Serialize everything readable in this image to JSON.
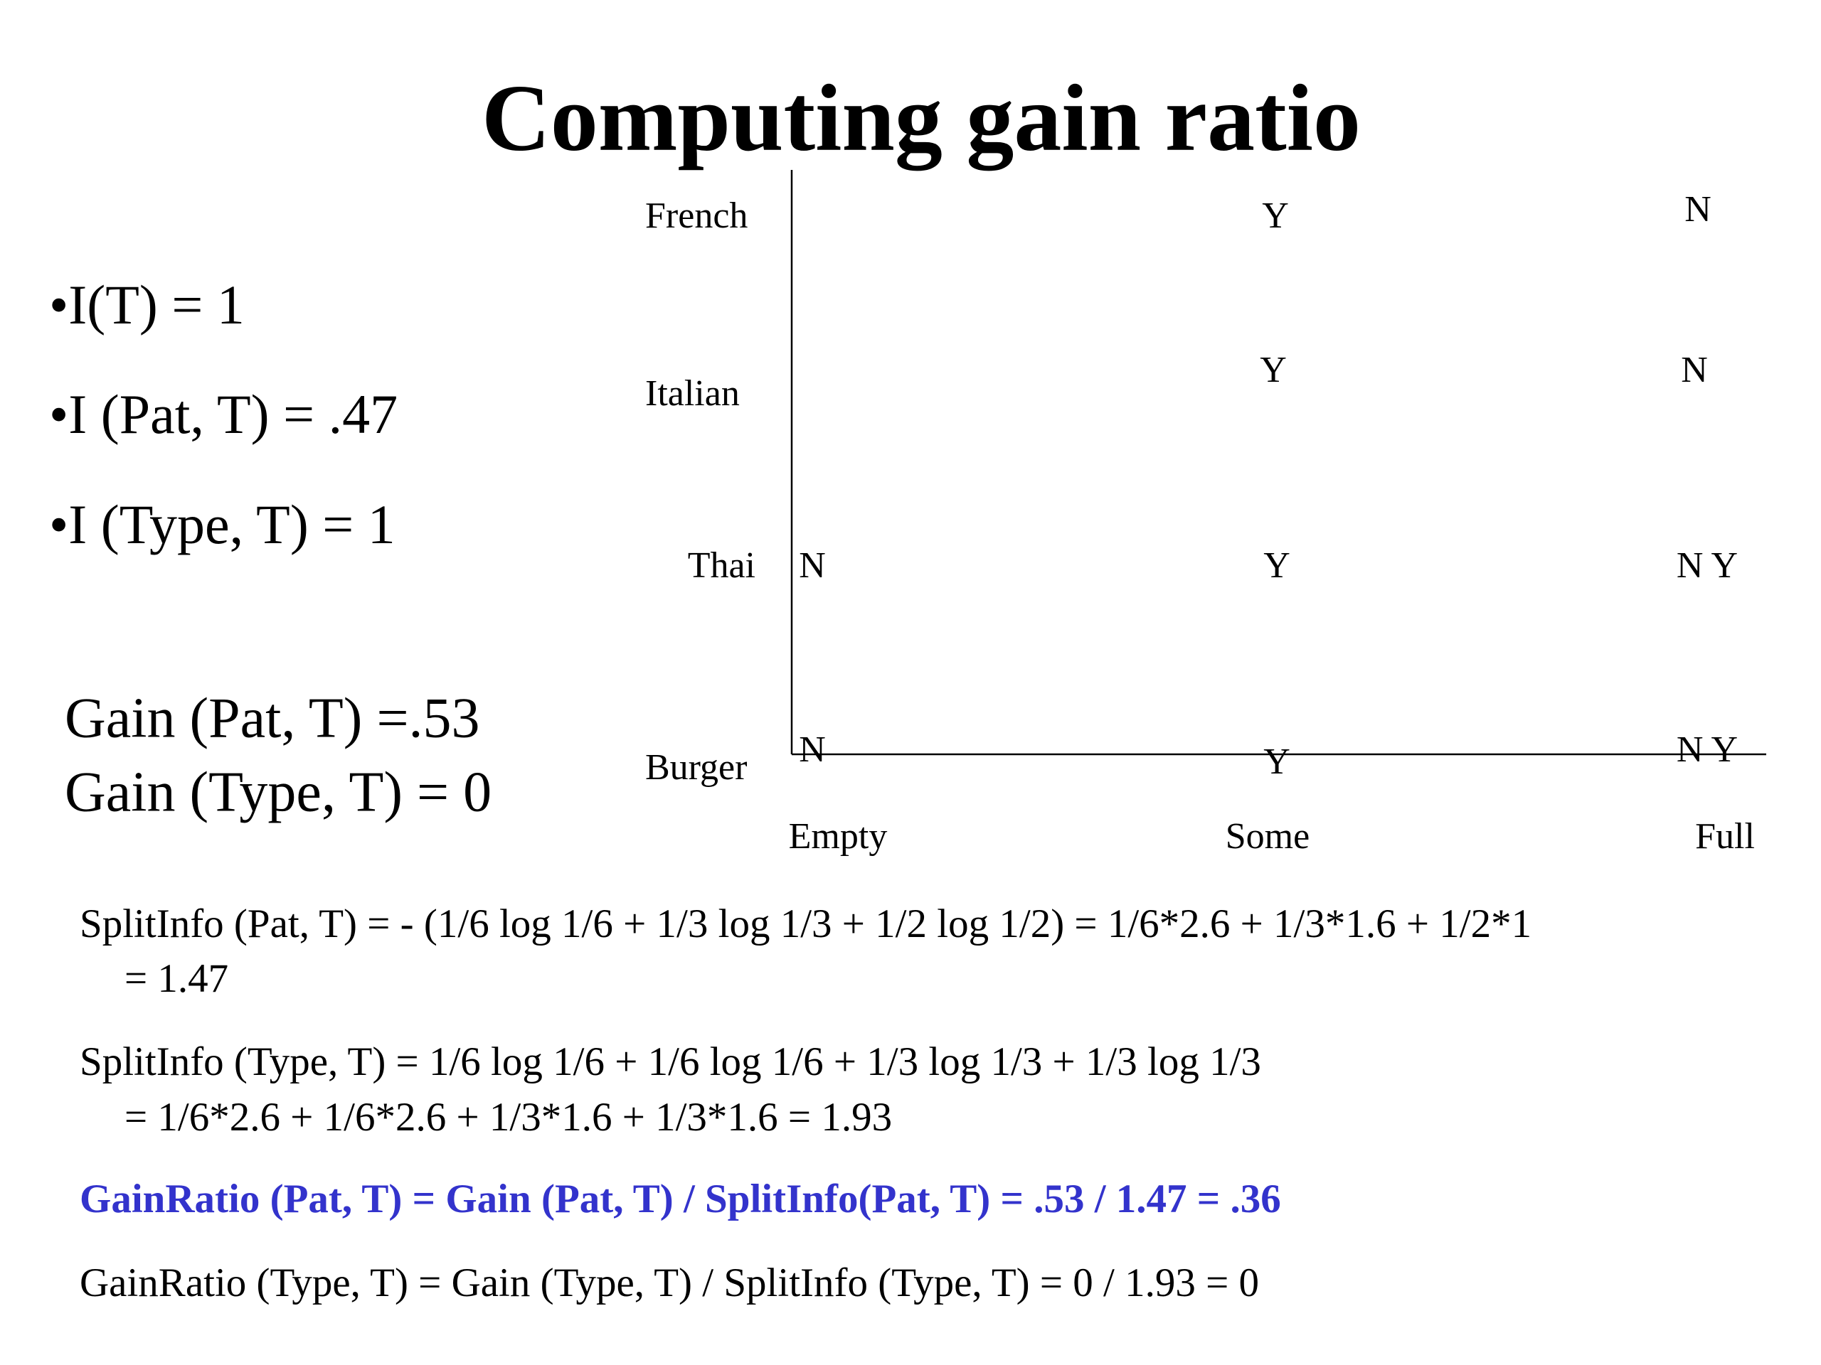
{
  "title": "Computing gain ratio",
  "bullets": [
    "•I(T) = 1",
    "•I (Pat, T) = .47",
    "•I (Type, T) = 1"
  ],
  "gains": [
    "Gain (Pat, T) =.53",
    "Gain (Type, T) = 0"
  ],
  "diagram": {
    "rows": [
      "French",
      "Italian",
      "Thai",
      "Burger"
    ],
    "columns": [
      "Empty",
      "Some",
      "Full"
    ],
    "cells": [
      "Y",
      "N",
      "Y",
      "N",
      "N",
      "Y",
      "N Y",
      "N",
      "Y",
      "N Y"
    ]
  },
  "formulas": [
    [
      "SplitInfo (Pat, T) = - (1/6 log 1/6 + 1/3 log 1/3 + 1/2 log 1/2) = 1/6*2.6 + 1/3*1.6 + 1/2*1",
      "= 1.47"
    ],
    [
      "SplitInfo (Type, T) = 1/6 log 1/6 + 1/6 log 1/6 + 1/3 log 1/3 + 1/3 log 1/3",
      "= 1/6*2.6 + 1/6*2.6 + 1/3*1.6 + 1/3*1.6 = 1.93"
    ],
    [
      "GainRatio (Pat, T) = Gain (Pat, T) / SplitInfo(Pat, T) = .53 / 1.47 = .36"
    ],
    [
      "GainRatio (Type, T) = Gain (Type, T) / SplitInfo (Type, T) = 0 / 1.93 = 0"
    ]
  ]
}
